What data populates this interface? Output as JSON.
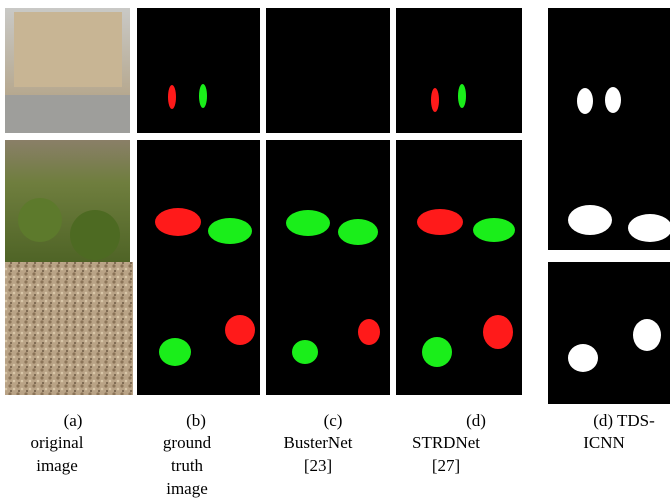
{
  "captions": [
    {
      "lines": [
        "(a)",
        "original",
        "image"
      ]
    },
    {
      "lines": [
        "(b)",
        "ground",
        "truth",
        "image"
      ]
    },
    {
      "lines": [
        "(c)",
        "BusterNet",
        "[23]"
      ]
    },
    {
      "lines": [
        "(d)",
        "STRDNet",
        "[27]"
      ]
    },
    {
      "lines": [
        "(d) TDS-",
        "ICNN"
      ]
    }
  ]
}
